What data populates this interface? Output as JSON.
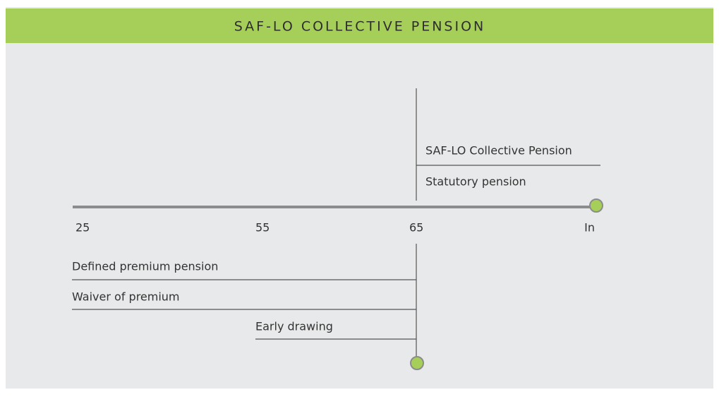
{
  "header": {
    "title": "SAF-LO COLLECTIVE PENSION"
  },
  "axis": {
    "labels": [
      "25",
      "55",
      "65",
      "In"
    ]
  },
  "upper_items": [
    "SAF-LO Collective Pension",
    "Statutory pension"
  ],
  "lower_items": [
    "Defined premium pension",
    "Waiver of premium",
    "Early drawing"
  ]
}
